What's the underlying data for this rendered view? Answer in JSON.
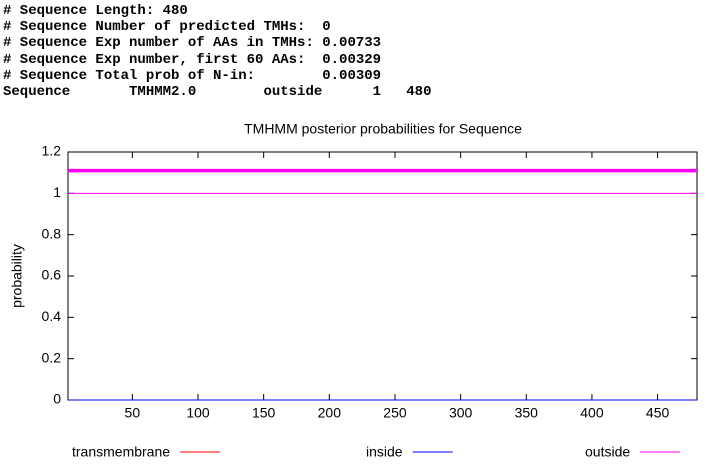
{
  "header": {
    "lines": [
      "# Sequence Length: 480",
      "# Sequence Number of predicted TMHs:  0",
      "# Sequence Exp number of AAs in TMHs: 0.00733",
      "# Sequence Exp number, first 60 AAs:  0.00329",
      "# Sequence Total prob of N-in:        0.00309",
      "Sequence       TMHMM2.0        outside      1   480"
    ]
  },
  "chart_data": {
    "type": "line",
    "title": "TMHMM posterior probabilities for Sequence",
    "ylabel": "probability",
    "x": [
      1,
      480
    ],
    "xlim": [
      1,
      480
    ],
    "xticks": [
      50,
      100,
      150,
      200,
      250,
      300,
      350,
      400,
      450
    ],
    "ylim": [
      0,
      1.2
    ],
    "yticks": [
      0,
      0.2,
      0.4,
      0.6,
      0.8,
      1,
      1.2
    ],
    "series": [
      {
        "name": "transmembrane",
        "color": "#ff0000",
        "values": [
          0,
          0
        ]
      },
      {
        "name": "inside",
        "color": "#0000ff",
        "values": [
          0,
          0
        ]
      },
      {
        "name": "outside",
        "color": "#ff00ff",
        "values": [
          1,
          1
        ]
      }
    ],
    "topology": [
      {
        "start": 1,
        "end": 480,
        "y": 1.11,
        "color": "#ff00ff"
      }
    ]
  }
}
